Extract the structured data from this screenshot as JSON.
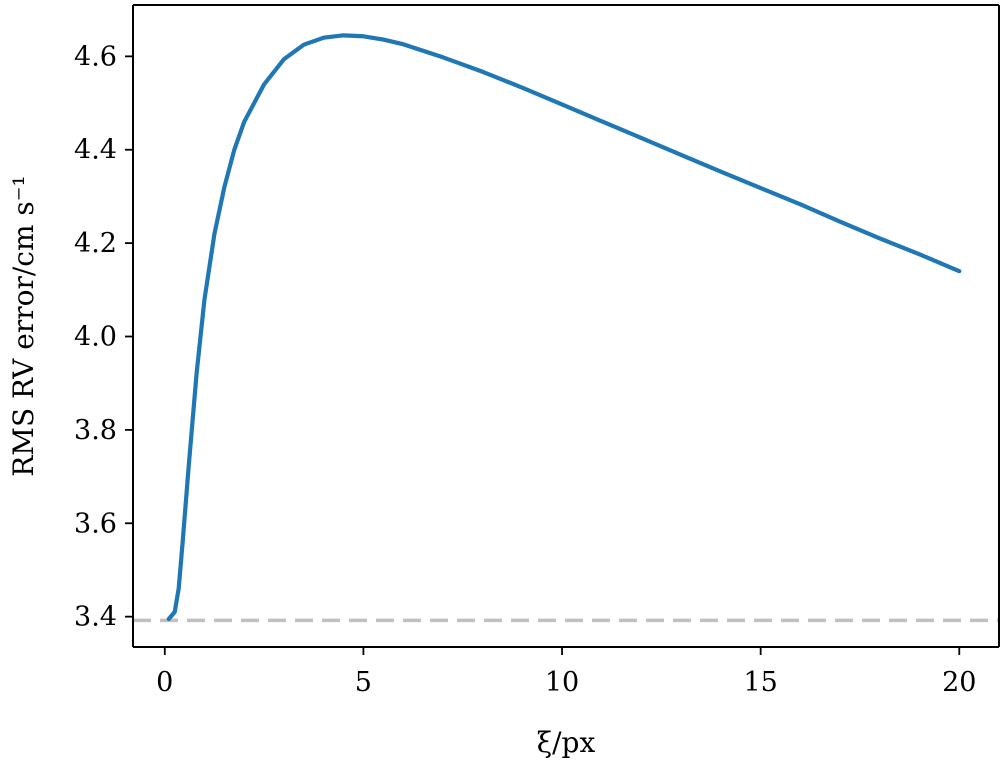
{
  "chart_data": {
    "type": "line",
    "title": "",
    "xlabel": "ξ/px",
    "ylabel": "RMS RV error/cm s⁻¹",
    "xlim": [
      -0.8,
      21.0
    ],
    "ylim": [
      3.335,
      4.71
    ],
    "xticks": [
      0,
      5,
      10,
      15,
      20
    ],
    "xtick_labels": [
      "0",
      "5",
      "10",
      "15",
      "20"
    ],
    "yticks": [
      3.4,
      3.6,
      3.8,
      4.0,
      4.2,
      4.4,
      4.6
    ],
    "ytick_labels": [
      "3.4",
      "3.6",
      "3.8",
      "4.0",
      "4.2",
      "4.4",
      "4.6"
    ],
    "grid": false,
    "series": [
      {
        "color": "#1f77b4",
        "x": [
          0.1,
          0.25,
          0.35,
          0.45,
          0.6,
          0.8,
          1.0,
          1.25,
          1.5,
          1.75,
          2.0,
          2.25,
          2.5,
          3.0,
          3.5,
          4.0,
          4.5,
          5.0,
          5.5,
          6.0,
          7.0,
          8.0,
          9.0,
          10.0,
          11.0,
          12.0,
          13.0,
          14.0,
          15.0,
          16.0,
          17.0,
          18.0,
          19.0,
          20.0
        ],
        "y": [
          3.395,
          3.41,
          3.46,
          3.56,
          3.72,
          3.92,
          4.08,
          4.22,
          4.32,
          4.4,
          4.46,
          4.5,
          4.54,
          4.594,
          4.625,
          4.64,
          4.645,
          4.643,
          4.636,
          4.626,
          4.598,
          4.567,
          4.533,
          4.497,
          4.461,
          4.425,
          4.389,
          4.353,
          4.318,
          4.283,
          4.246,
          4.21,
          4.176,
          4.14
        ]
      }
    ],
    "reference_line": {
      "y": 3.392,
      "style": "dashed",
      "color": "#c0c0c0"
    }
  }
}
